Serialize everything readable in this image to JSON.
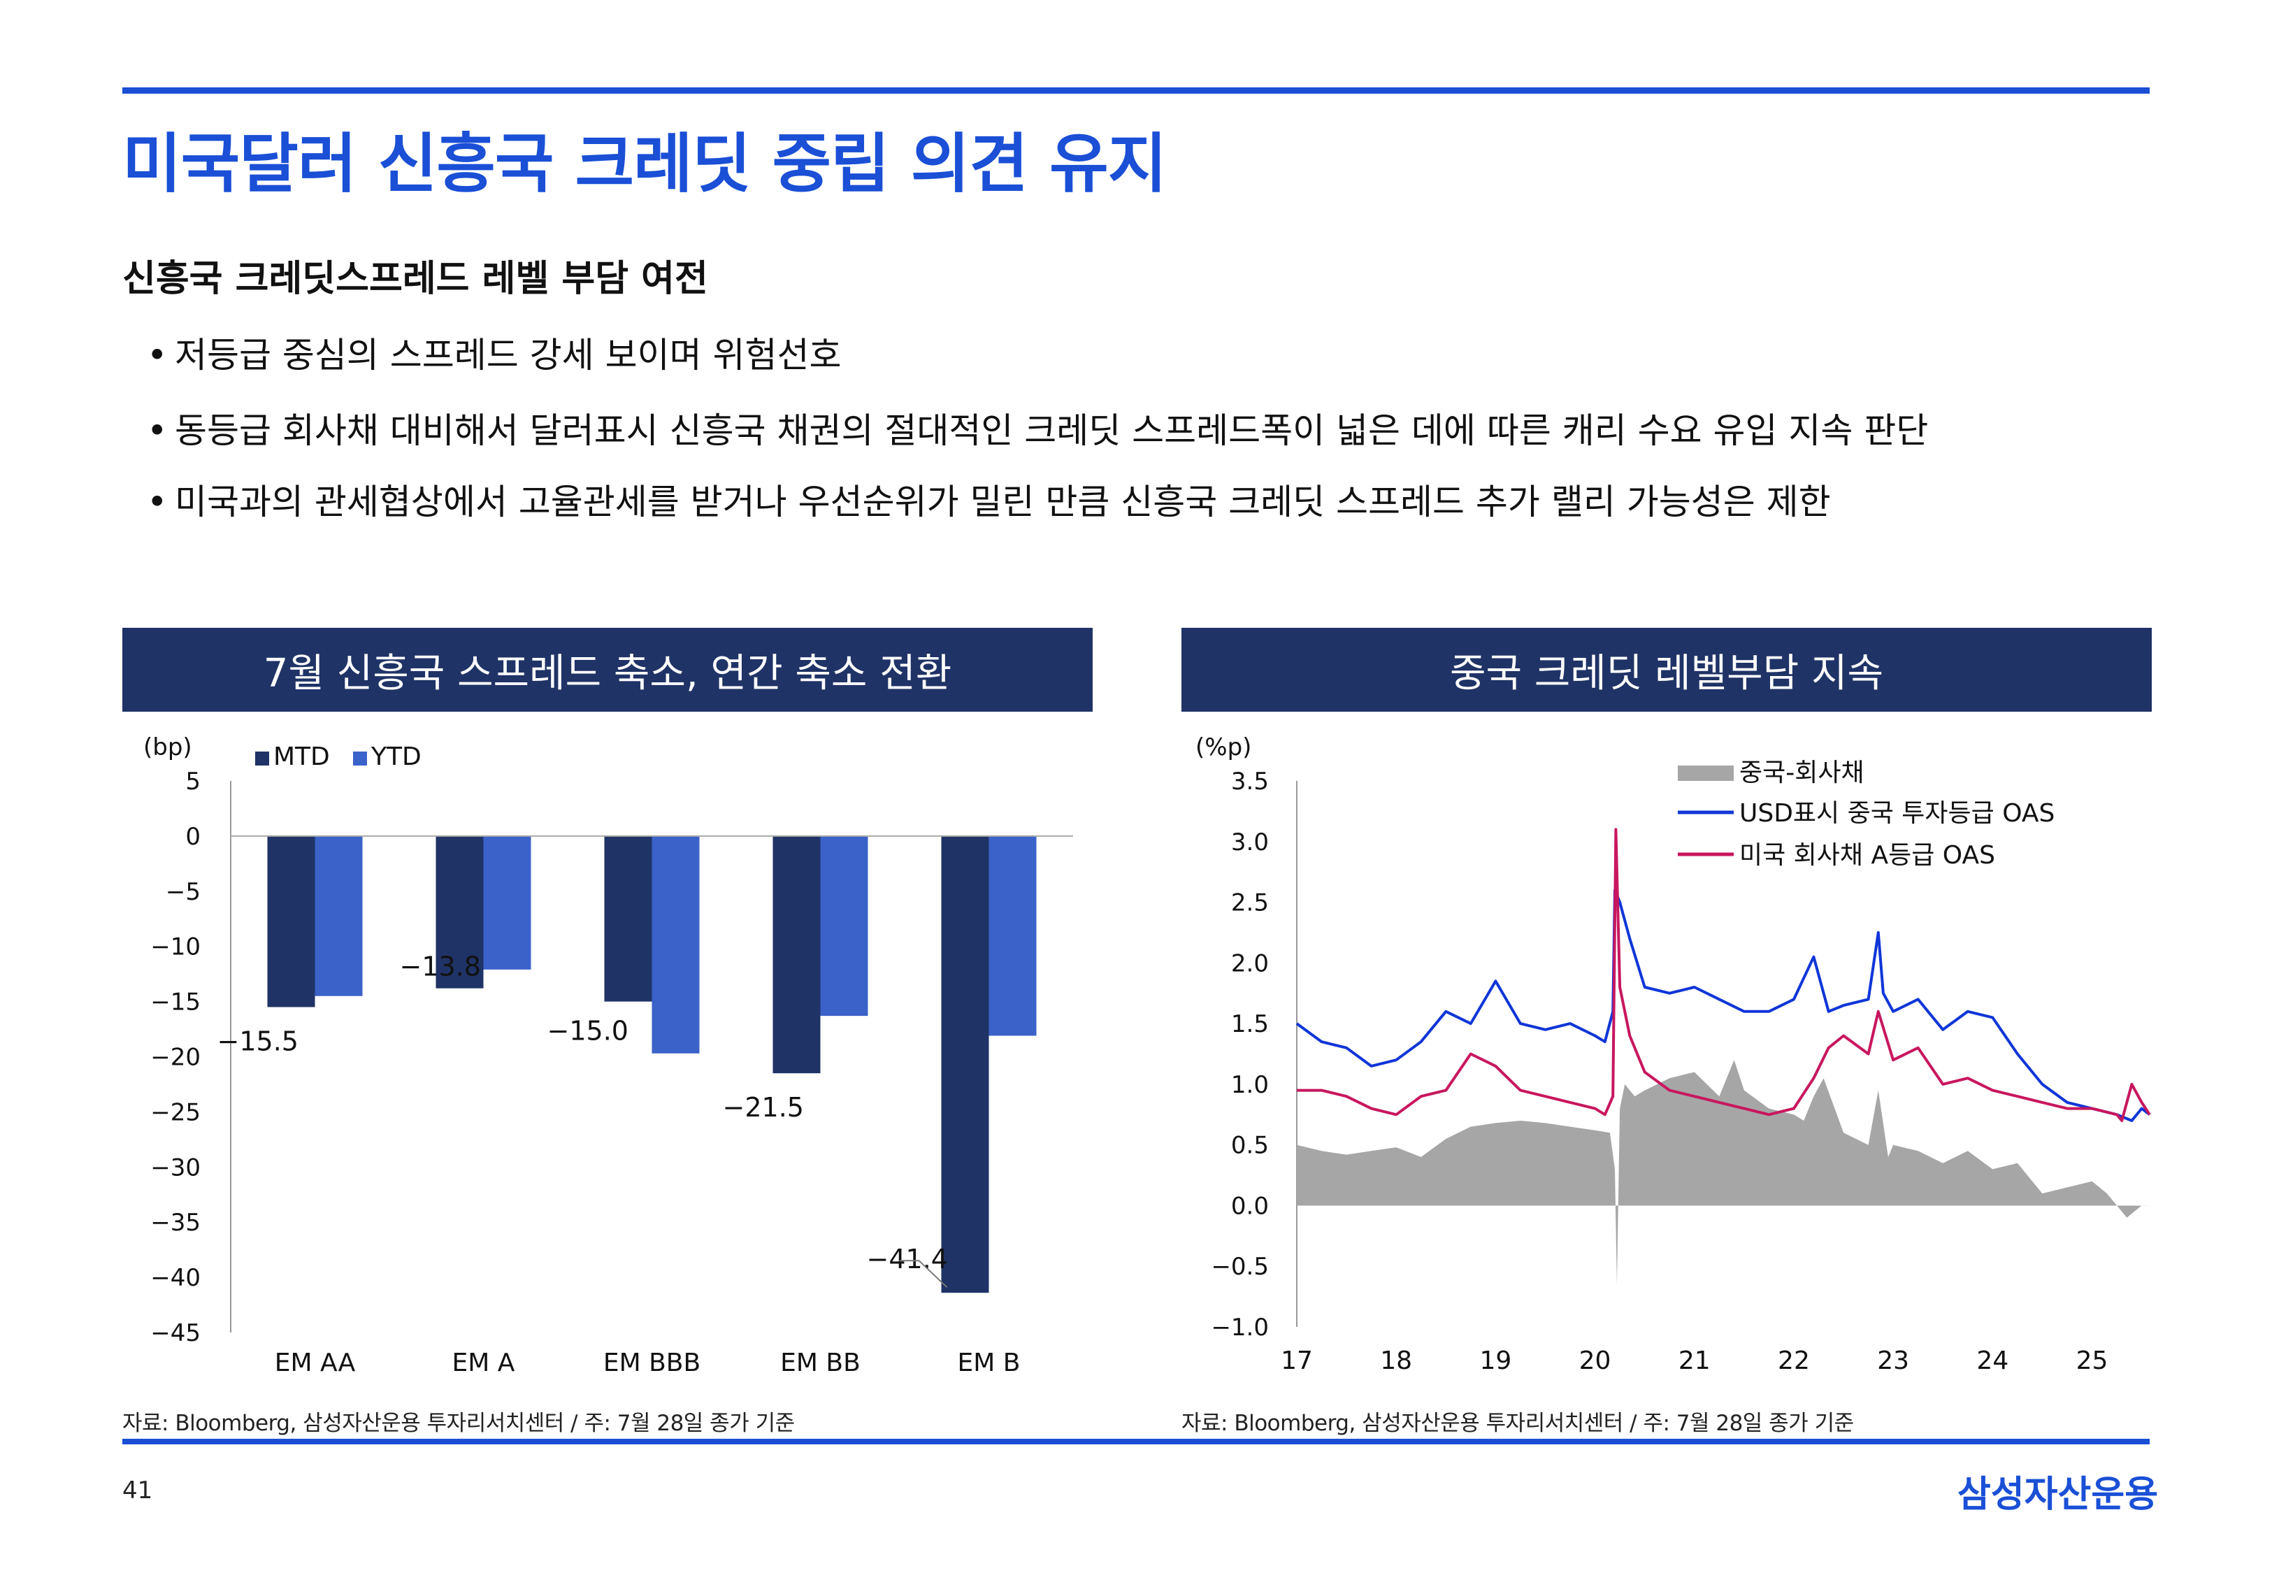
{
  "header": {
    "title": "미국달러 신흥국 크레딧 중립 의견 유지"
  },
  "section": {
    "heading": "신흥국 크레딧스프레드 레벨 부담 여전",
    "bullets": [
      "저등급 중심의 스프레드 강세 보이며 위험선호",
      "동등급 회사채 대비해서 달러표시 신흥국 채권의 절대적인 크레딧 스프레드폭이 넓은 데에 따른 캐리 수요 유입 지속 판단",
      "미국과의 관세협상에서 고율관세를 받거나 우선순위가 밀린 만큼 신흥국 크레딧 스프레드 추가 랠리 가능성은 제한"
    ]
  },
  "panels": {
    "left_title": "7월 신흥국 스프레드 축소, 연간 축소 전환",
    "right_title": "중국 크레딧 레벨부담 지속",
    "left_source": "자료: Bloomberg, 삼성자산운용 투자리서치센터 / 주: 7월 28일 종가 기준",
    "right_source": "자료: Bloomberg, 삼성자산운용 투자리서치센터 / 주: 7월 28일 종가 기준"
  },
  "footer": {
    "page": "41",
    "brand": "삼성자산운용"
  },
  "colors": {
    "accent": "#1a4fd6",
    "panel_header": "#1f3366",
    "mtd": "#1f3366",
    "ytd": "#3a62c8",
    "china_area": "#a6a6a6",
    "usd_oas": "#1036d8",
    "us_oas": "#c8175e"
  },
  "chart_data": [
    {
      "type": "bar",
      "ylabel": "(bp)",
      "ylim": [
        -45,
        5
      ],
      "yticks": [
        5,
        0,
        -5,
        -10,
        -15,
        -20,
        -25,
        -30,
        -35,
        -40,
        -45
      ],
      "ytick_labels": [
        "5",
        "0",
        "−5",
        "−10",
        "−15",
        "−20",
        "−25",
        "−30",
        "−35",
        "−40",
        "−45"
      ],
      "categories": [
        "EM AA",
        "EM A",
        "EM BBB",
        "EM BB",
        "EM B"
      ],
      "series": [
        {
          "name": "MTD",
          "values": [
            -15.5,
            -13.8,
            -15.0,
            -21.5,
            -41.4
          ]
        },
        {
          "name": "YTD",
          "values": [
            -14.5,
            -12.1,
            -19.7,
            -16.3,
            -18.1
          ]
        }
      ],
      "data_labels": [
        "−15.5",
        "−13.8",
        "−15.0",
        "−21.5",
        "−41.4"
      ],
      "legend": "top-left",
      "grid": false
    },
    {
      "type": "line",
      "ylabel": "(%p)",
      "ylim": [
        -1.0,
        3.5
      ],
      "yticks": [
        3.5,
        3.0,
        2.5,
        2.0,
        1.5,
        1.0,
        0.5,
        0.0,
        -0.5,
        -1.0
      ],
      "ytick_labels": [
        "3.5",
        "3.0",
        "2.5",
        "2.0",
        "1.5",
        "1.0",
        "0.5",
        "0.0",
        "−0.5",
        "−1.0"
      ],
      "xlim": [
        2017.0,
        2025.58
      ],
      "xticks": [
        2017,
        2018,
        2019,
        2020,
        2021,
        2022,
        2023,
        2024,
        2025
      ],
      "xtick_labels": [
        "17",
        "18",
        "19",
        "20",
        "21",
        "22",
        "23",
        "24",
        "25"
      ],
      "legend": "top-right",
      "grid": false,
      "series": [
        {
          "name": "중국-회사채",
          "style": "area",
          "x": [
            2017.0,
            2017.25,
            2017.5,
            2017.75,
            2018.0,
            2018.25,
            2018.5,
            2018.75,
            2019.0,
            2019.25,
            2019.5,
            2019.75,
            2020.0,
            2020.15,
            2020.2,
            2020.22,
            2020.25,
            2020.3,
            2020.4,
            2020.5,
            2020.75,
            2021.0,
            2021.25,
            2021.4,
            2021.5,
            2021.75,
            2022.0,
            2022.1,
            2022.2,
            2022.3,
            2022.5,
            2022.75,
            2022.85,
            2022.95,
            2023.0,
            2023.25,
            2023.5,
            2023.75,
            2024.0,
            2024.25,
            2024.5,
            2024.75,
            2025.0,
            2025.15,
            2025.25,
            2025.35,
            2025.5,
            2025.58
          ],
          "y": [
            0.5,
            0.45,
            0.42,
            0.45,
            0.48,
            0.4,
            0.55,
            0.65,
            0.68,
            0.7,
            0.68,
            0.65,
            0.62,
            0.6,
            0.3,
            -0.65,
            0.8,
            1.0,
            0.9,
            0.95,
            1.05,
            1.1,
            0.9,
            1.2,
            0.95,
            0.8,
            0.75,
            0.7,
            0.9,
            1.05,
            0.6,
            0.5,
            0.95,
            0.4,
            0.5,
            0.45,
            0.35,
            0.45,
            0.3,
            0.35,
            0.1,
            0.15,
            0.2,
            0.1,
            0.0,
            -0.1,
            0.0,
            0.0
          ]
        },
        {
          "name": "USD표시 중국 투자등급 OAS",
          "style": "line",
          "x": [
            2017.0,
            2017.25,
            2017.5,
            2017.75,
            2018.0,
            2018.25,
            2018.5,
            2018.75,
            2019.0,
            2019.25,
            2019.5,
            2019.75,
            2020.0,
            2020.1,
            2020.18,
            2020.2,
            2020.25,
            2020.35,
            2020.5,
            2020.75,
            2021.0,
            2021.25,
            2021.5,
            2021.75,
            2022.0,
            2022.2,
            2022.25,
            2022.35,
            2022.5,
            2022.75,
            2022.85,
            2022.9,
            2023.0,
            2023.25,
            2023.5,
            2023.75,
            2024.0,
            2024.25,
            2024.5,
            2024.75,
            2025.0,
            2025.25,
            2025.4,
            2025.5,
            2025.58
          ],
          "y": [
            1.5,
            1.35,
            1.3,
            1.15,
            1.2,
            1.35,
            1.6,
            1.5,
            1.85,
            1.5,
            1.45,
            1.5,
            1.4,
            1.35,
            1.6,
            2.6,
            2.5,
            2.2,
            1.8,
            1.75,
            1.8,
            1.7,
            1.6,
            1.6,
            1.7,
            2.05,
            1.9,
            1.6,
            1.65,
            1.7,
            2.25,
            1.75,
            1.6,
            1.7,
            1.45,
            1.6,
            1.55,
            1.25,
            1.0,
            0.85,
            0.8,
            0.75,
            0.7,
            0.8,
            0.75
          ]
        },
        {
          "name": "미국 회사채 A등급 OAS",
          "style": "line",
          "x": [
            2017.0,
            2017.25,
            2017.5,
            2017.75,
            2018.0,
            2018.25,
            2018.5,
            2018.75,
            2019.0,
            2019.25,
            2019.5,
            2019.75,
            2020.0,
            2020.1,
            2020.18,
            2020.21,
            2020.25,
            2020.35,
            2020.5,
            2020.75,
            2021.0,
            2021.25,
            2021.5,
            2021.75,
            2022.0,
            2022.2,
            2022.35,
            2022.5,
            2022.75,
            2022.85,
            2023.0,
            2023.25,
            2023.5,
            2023.75,
            2024.0,
            2024.25,
            2024.5,
            2024.75,
            2025.0,
            2025.25,
            2025.3,
            2025.4,
            2025.5,
            2025.58
          ],
          "y": [
            0.95,
            0.95,
            0.9,
            0.8,
            0.75,
            0.9,
            0.95,
            1.25,
            1.15,
            0.95,
            0.9,
            0.85,
            0.8,
            0.75,
            0.9,
            3.1,
            1.8,
            1.4,
            1.1,
            0.95,
            0.9,
            0.85,
            0.8,
            0.75,
            0.8,
            1.05,
            1.3,
            1.4,
            1.25,
            1.6,
            1.2,
            1.3,
            1.0,
            1.05,
            0.95,
            0.9,
            0.85,
            0.8,
            0.8,
            0.75,
            0.7,
            1.0,
            0.85,
            0.75
          ]
        }
      ]
    }
  ]
}
